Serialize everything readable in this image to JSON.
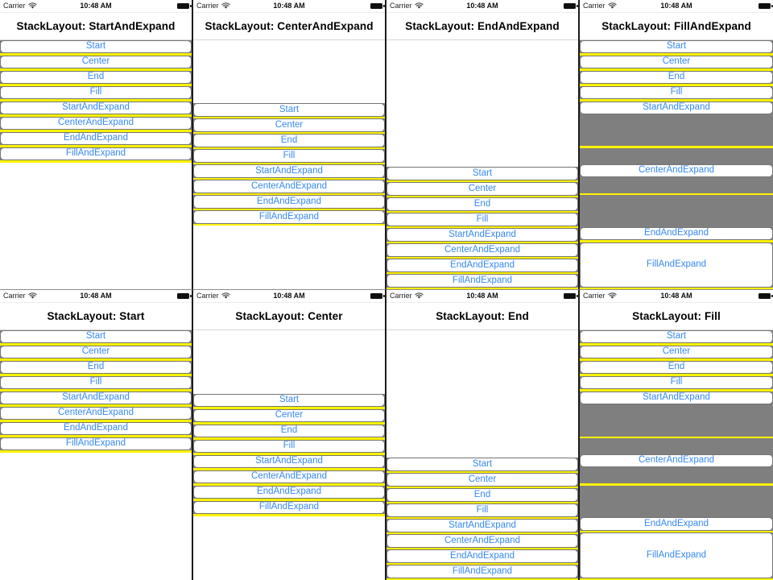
{
  "statusbar": {
    "carrier": "Carrier",
    "time": "10:48 AM",
    "wifi_icon": "wifi-icon",
    "battery_icon": "battery-full-icon"
  },
  "buttons": [
    "Start",
    "Center",
    "End",
    "Fill",
    "StartAndExpand",
    "CenterAndExpand",
    "EndAndExpand",
    "FillAndExpand"
  ],
  "panels": [
    {
      "title": "StackLayout: StartAndExpand",
      "option": "StartAndExpand",
      "mode": "start"
    },
    {
      "title": "StackLayout: CenterAndExpand",
      "option": "CenterAndExpand",
      "mode": "center"
    },
    {
      "title": "StackLayout: EndAndExpand",
      "option": "EndAndExpand",
      "mode": "end"
    },
    {
      "title": "StackLayout: FillAndExpand",
      "option": "FillAndExpand",
      "mode": "fill"
    },
    {
      "title": "StackLayout: Start",
      "option": "Start",
      "mode": "start"
    },
    {
      "title": "StackLayout: Center",
      "option": "Center",
      "mode": "center"
    },
    {
      "title": "StackLayout: End",
      "option": "End",
      "mode": "end"
    },
    {
      "title": "StackLayout: Fill",
      "option": "Fill",
      "mode": "fill"
    }
  ],
  "colors": {
    "accent_blue": "#3689F2",
    "slot_gray": "#7F7F7F",
    "spacing_yellow": "#FFF200",
    "divider_black": "#1C1C1C",
    "button_border_gray": "#757575"
  }
}
